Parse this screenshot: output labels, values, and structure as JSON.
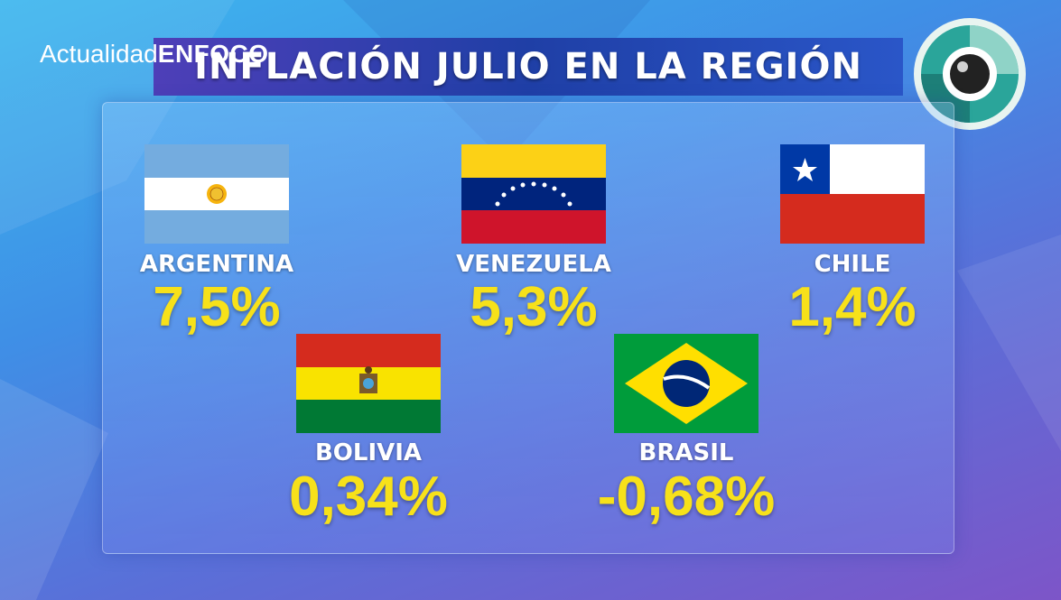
{
  "brand": {
    "left": "Actualidad",
    "right": "ENFOCO"
  },
  "title": "INFLACIÓN JULIO EN LA REGIÓN",
  "countries": [
    {
      "name": "ARGENTINA",
      "value": "7,5%"
    },
    {
      "name": "VENEZUELA",
      "value": "5,3%"
    },
    {
      "name": "CHILE",
      "value": "1,4%"
    },
    {
      "name": "BOLIVIA",
      "value": "0,34%"
    },
    {
      "name": "BRASIL",
      "value": "-0,68%"
    }
  ]
}
